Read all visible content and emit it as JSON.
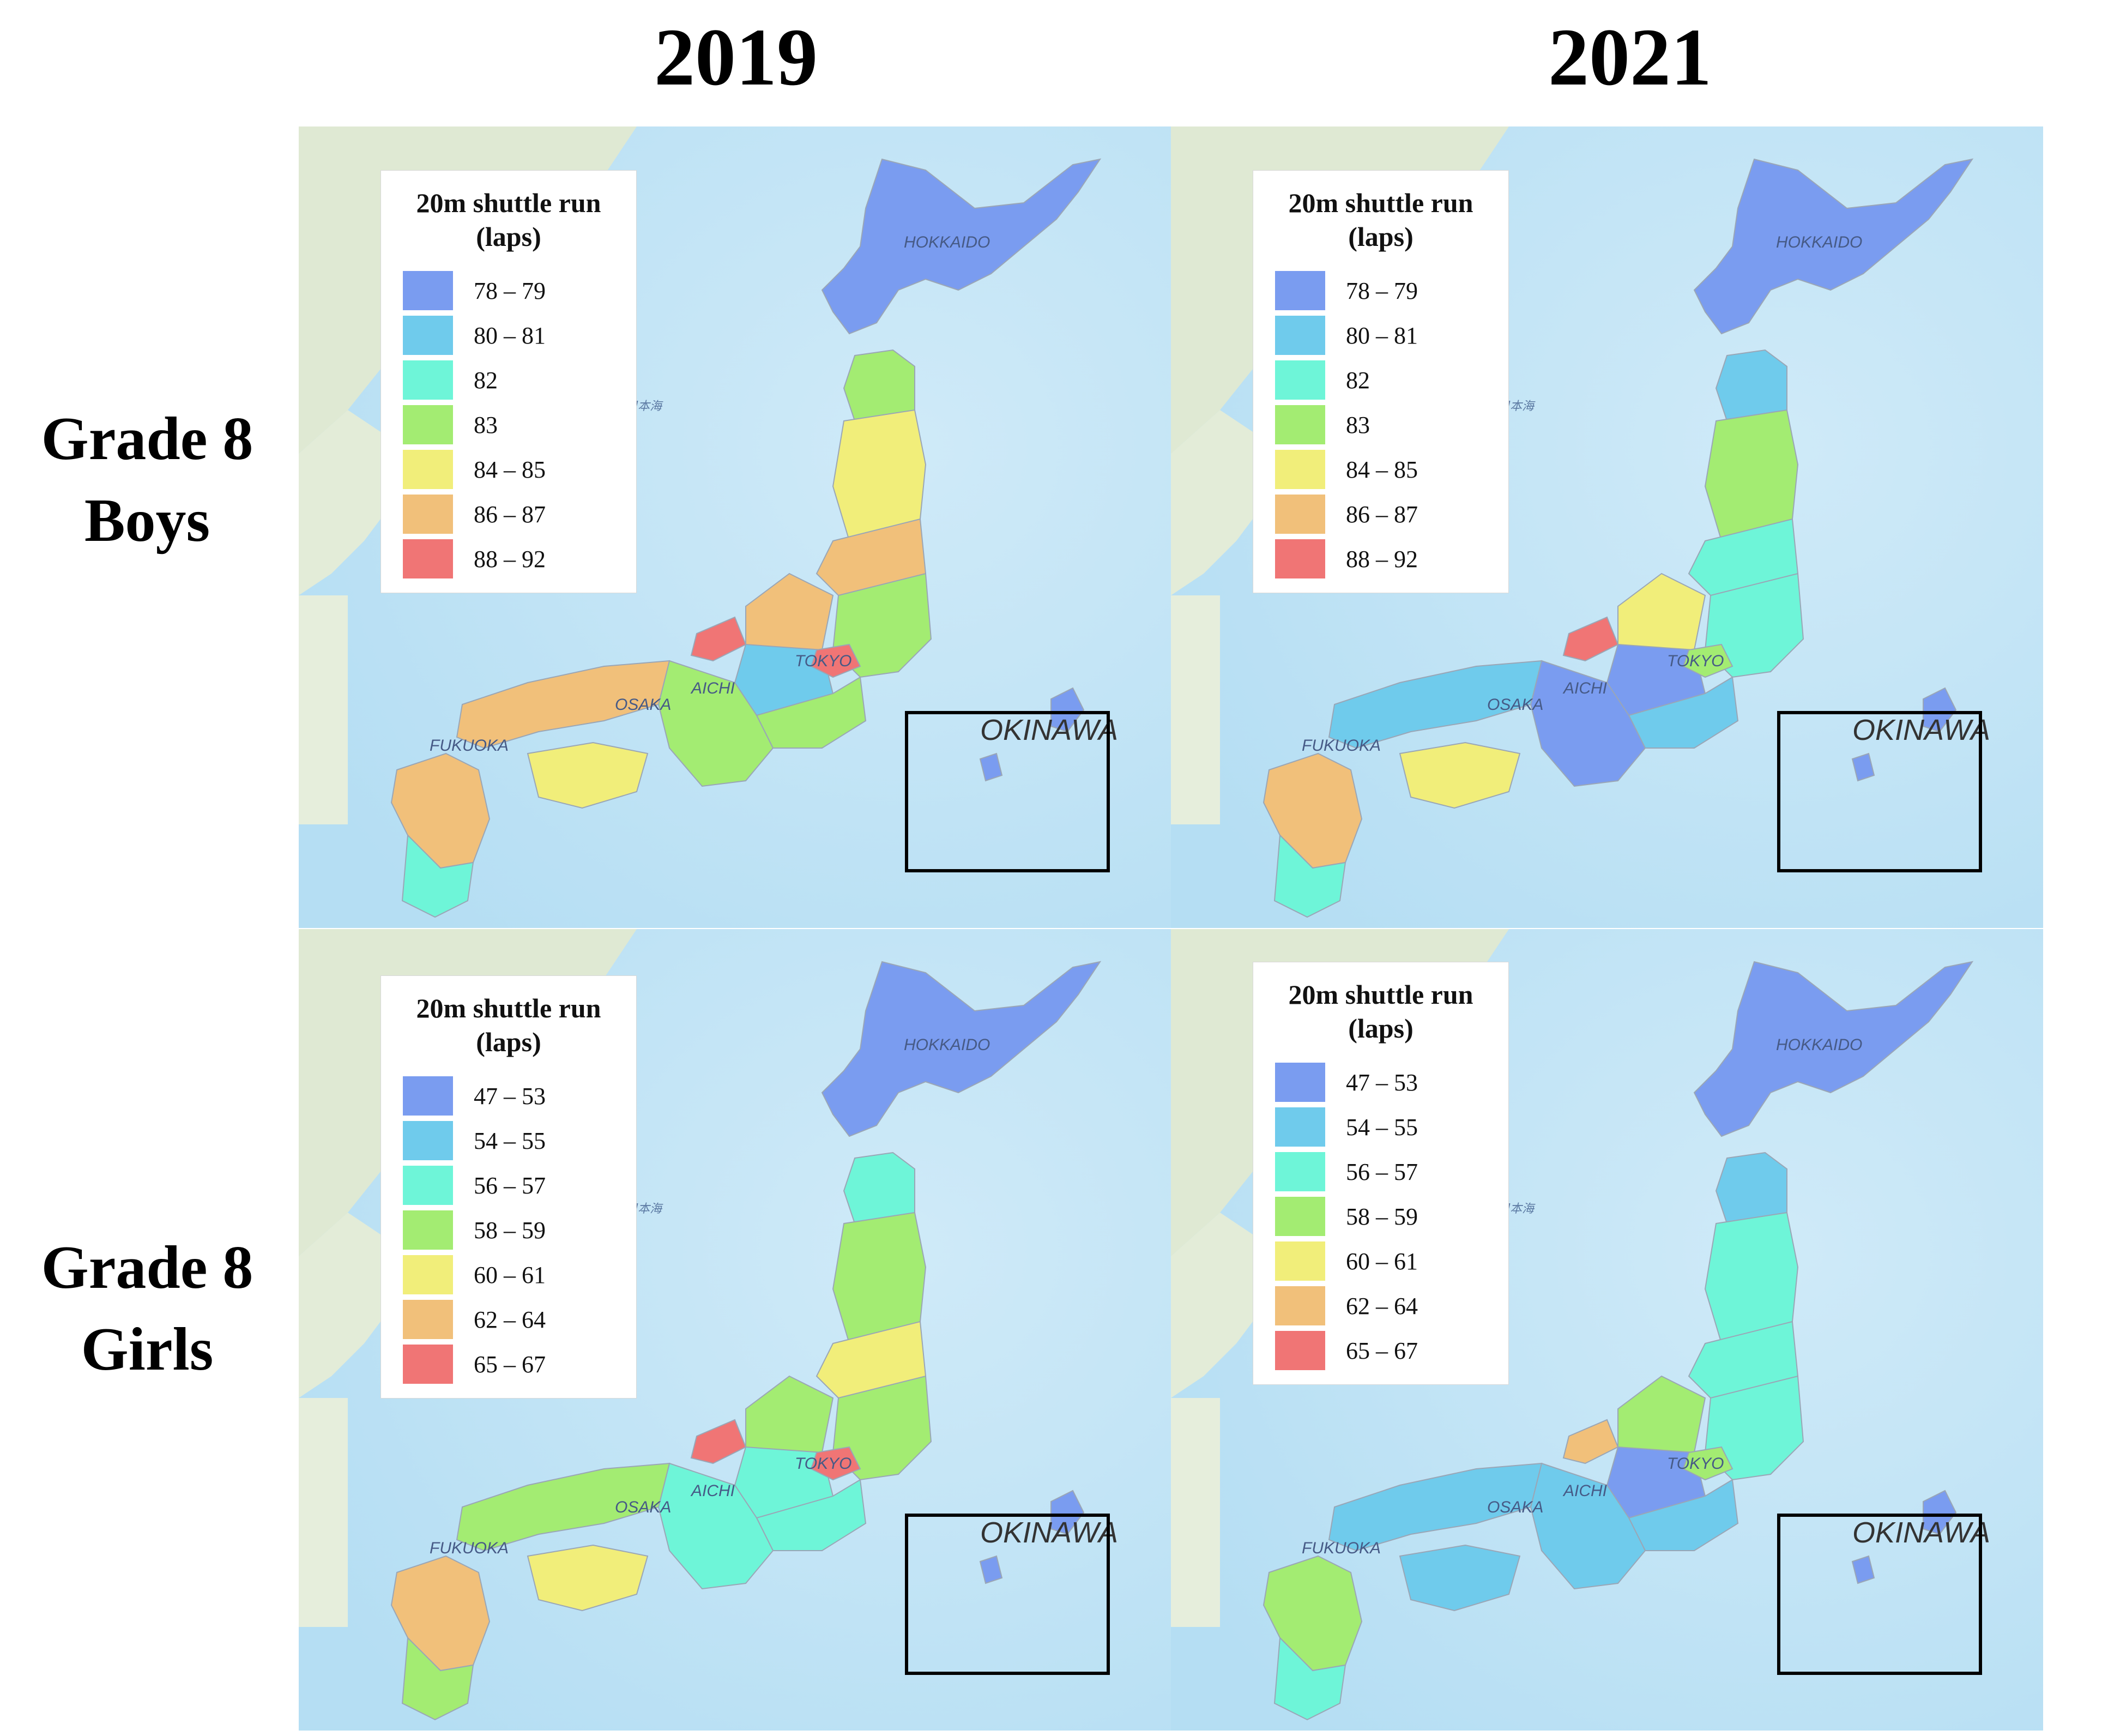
{
  "columns": [
    {
      "title": "2019"
    },
    {
      "title": "2021"
    }
  ],
  "rows": [
    {
      "title_line1": "Grade 8",
      "title_line2": "Boys"
    },
    {
      "title_line1": "Grade 8",
      "title_line2": "Girls"
    }
  ],
  "place_labels": {
    "hokkaido": "HOKKAIDO",
    "tokyo": "TOKYO",
    "aichi": "AICHI",
    "osaka": "OSAKA",
    "fukuoka": "FUKUOKA",
    "okinawa": "OKINAWA",
    "sea": "日本海"
  },
  "legend_colors": [
    "#7a9cf0",
    "#6fcbec",
    "#6ef5d8",
    "#a3ec72",
    "#f1ee7a",
    "#f1c07a",
    "#f07575"
  ],
  "panels": [
    {
      "legend": {
        "title_line1": "20m shuttle run",
        "title_line2": "(laps)",
        "items": [
          {
            "label": "78 – 79",
            "color": "#7a9cf0"
          },
          {
            "label": "80 – 81",
            "color": "#6fcbec"
          },
          {
            "label": "82",
            "color": "#6ef5d8"
          },
          {
            "label": "83",
            "color": "#a3ec72"
          },
          {
            "label": "84 – 85",
            "color": "#f1ee7a"
          },
          {
            "label": "86 – 87",
            "color": "#f1c07a"
          },
          {
            "label": "88 – 92",
            "color": "#f07575"
          }
        ]
      },
      "regions": {
        "hokkaido": "#7a9cf0",
        "tohoku_n": "#a3ec72",
        "tohoku_m": "#f1ee7a",
        "tohoku_s": "#f1c07a",
        "kanto": "#a3ec72",
        "hokuriku": "#f1c07a",
        "chubu": "#6fcbec",
        "tokai": "#a3ec72",
        "kinki": "#a3ec72",
        "chugoku": "#f1c07a",
        "shikoku": "#f1ee7a",
        "kyushu": "#f1c07a",
        "kyushu_s": "#6ef5d8",
        "okinawa": "#7a9cf0",
        "accent1": "#f07575",
        "accent2": "#f07575"
      }
    },
    {
      "legend": {
        "title_line1": "20m shuttle run",
        "title_line2": "(laps)",
        "items": [
          {
            "label": "78 – 79",
            "color": "#7a9cf0"
          },
          {
            "label": "80 – 81",
            "color": "#6fcbec"
          },
          {
            "label": "82",
            "color": "#6ef5d8"
          },
          {
            "label": "83",
            "color": "#a3ec72"
          },
          {
            "label": "84 – 85",
            "color": "#f1ee7a"
          },
          {
            "label": "86 – 87",
            "color": "#f1c07a"
          },
          {
            "label": "88 – 92",
            "color": "#f07575"
          }
        ]
      },
      "regions": {
        "hokkaido": "#7a9cf0",
        "tohoku_n": "#6fcbec",
        "tohoku_m": "#a3ec72",
        "tohoku_s": "#6ef5d8",
        "kanto": "#6ef5d8",
        "hokuriku": "#f1ee7a",
        "chubu": "#7a9cf0",
        "tokai": "#6fcbec",
        "kinki": "#7a9cf0",
        "chugoku": "#6fcbec",
        "shikoku": "#f1ee7a",
        "kyushu": "#f1c07a",
        "kyushu_s": "#6ef5d8",
        "okinawa": "#7a9cf0",
        "accent1": "#f07575",
        "accent2": "#a3ec72"
      }
    },
    {
      "legend": {
        "title_line1": "20m shuttle run",
        "title_line2": "(laps)",
        "items": [
          {
            "label": "47 – 53",
            "color": "#7a9cf0"
          },
          {
            "label": "54 – 55",
            "color": "#6fcbec"
          },
          {
            "label": "56 – 57",
            "color": "#6ef5d8"
          },
          {
            "label": "58 – 59",
            "color": "#a3ec72"
          },
          {
            "label": "60 – 61",
            "color": "#f1ee7a"
          },
          {
            "label": "62 – 64",
            "color": "#f1c07a"
          },
          {
            "label": "65 – 67",
            "color": "#f07575"
          }
        ]
      },
      "regions": {
        "hokkaido": "#7a9cf0",
        "tohoku_n": "#6ef5d8",
        "tohoku_m": "#a3ec72",
        "tohoku_s": "#f1ee7a",
        "kanto": "#a3ec72",
        "hokuriku": "#a3ec72",
        "chubu": "#6ef5d8",
        "tokai": "#6ef5d8",
        "kinki": "#6ef5d8",
        "chugoku": "#a3ec72",
        "shikoku": "#f1ee7a",
        "kyushu": "#f1c07a",
        "kyushu_s": "#a3ec72",
        "okinawa": "#7a9cf0",
        "accent1": "#f07575",
        "accent2": "#f07575"
      }
    },
    {
      "legend": {
        "title_line1": "20m shuttle run",
        "title_line2": "(laps)",
        "items": [
          {
            "label": "47 – 53",
            "color": "#7a9cf0"
          },
          {
            "label": "54 – 55",
            "color": "#6fcbec"
          },
          {
            "label": "56 – 57",
            "color": "#6ef5d8"
          },
          {
            "label": "58 – 59",
            "color": "#a3ec72"
          },
          {
            "label": "60 – 61",
            "color": "#f1ee7a"
          },
          {
            "label": "62 – 64",
            "color": "#f1c07a"
          },
          {
            "label": "65 – 67",
            "color": "#f07575"
          }
        ]
      },
      "regions": {
        "hokkaido": "#7a9cf0",
        "tohoku_n": "#6fcbec",
        "tohoku_m": "#6ef5d8",
        "tohoku_s": "#6ef5d8",
        "kanto": "#6ef5d8",
        "hokuriku": "#a3ec72",
        "chubu": "#7a9cf0",
        "tokai": "#6fcbec",
        "kinki": "#6fcbec",
        "chugoku": "#6fcbec",
        "shikoku": "#6fcbec",
        "kyushu": "#a3ec72",
        "kyushu_s": "#6ef5d8",
        "okinawa": "#7a9cf0",
        "accent1": "#f1c07a",
        "accent2": "#a3ec72"
      }
    }
  ]
}
